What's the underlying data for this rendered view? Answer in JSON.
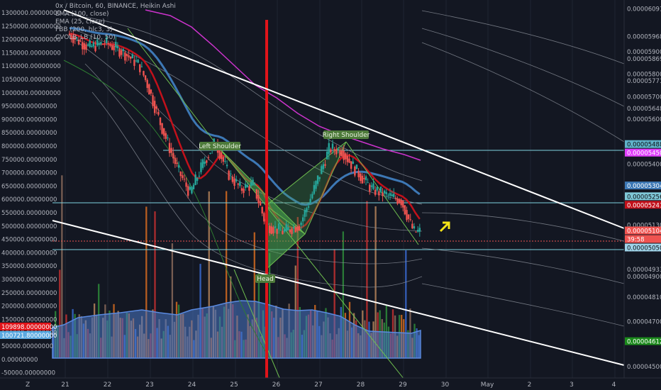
{
  "legend": {
    "title": "0x / Bitcoin, 60, BINANCE, Heikin Ashi",
    "line1": "EMA (100, close)",
    "line2": "EMA (25, close)",
    "line3": "FBB (200, hlc3, 3)",
    "line4": "CVOLB_LB (10, 50)"
  },
  "annotations": {
    "left_shoulder": "Left Shoulder",
    "head": "Head",
    "right_shoulder": "Right Shoulder"
  },
  "corner_label": "Z",
  "volume_axis": {
    "ticks": [
      "1300000.00000000",
      "1250000.00000000",
      "1200000.00000000",
      "1150000.00000000",
      "1100000.00000000",
      "1050000.00000000",
      "1000000.00000000",
      "950000.00000000",
      "900000.00000000",
      "850000.00000000",
      "800000.00000000",
      "750000.00000000",
      "700000.00000000",
      "650000.00000000",
      "600000.00000000",
      "550000.00000000",
      "500000.00000000",
      "450000.00000000",
      "400000.00000000",
      "350000.00000000",
      "300000.00000000",
      "250000.00000000",
      "200000.00000000",
      "150000.00000000",
      "100000.00000000",
      "50000.00000000",
      "0.00000000",
      "-50000.00000000"
    ],
    "badge_red": "109898.00000000",
    "badge_blue": "100721.80000000"
  },
  "price_axis": {
    "plain_ticks": [
      "0.00006091",
      "0.00005968",
      "0.00005900",
      "0.00005869",
      "0.00005800",
      "0.00005771",
      "0.00005700",
      "0.00005648",
      "0.00005600",
      "0.00005400",
      "0.00005253",
      "0.00005130",
      "0.00005031",
      "0.00004933",
      "0.00004900",
      "0.00004810",
      "0.00004700",
      "0.00004500"
    ],
    "badges": [
      {
        "text": "0.00005488",
        "bg": "#5fb2c9",
        "fg": "#0b0e14"
      },
      {
        "text": "0.00005450",
        "bg": "#e040fb",
        "fg": "#ffffff"
      },
      {
        "text": "0.00005304",
        "bg": "#3d78b5",
        "fg": "#ffffff"
      },
      {
        "text": "0.00005256",
        "bg": "#7fc7d6",
        "fg": "#0b0e14"
      },
      {
        "text": "0.00005241",
        "bg": "#c2111b",
        "fg": "#ffffff"
      },
      {
        "text": "0.00005104",
        "bg": "#ef5350",
        "fg": "#ffffff"
      },
      {
        "text": "39:58",
        "bg": "#ef5350",
        "fg": "#ffffff"
      },
      {
        "text": "0.00005050",
        "bg": "#9fd3e8",
        "fg": "#0b0e14"
      },
      {
        "text": "0.00004612",
        "bg": "#1b8a1b",
        "fg": "#ffffff"
      }
    ]
  },
  "time_axis": [
    "21",
    "22",
    "23",
    "24",
    "25",
    "26",
    "27",
    "28",
    "29",
    "30",
    "May",
    "2",
    "3",
    "4"
  ],
  "colors": {
    "background": "#131722",
    "candle_up": "#26a69a",
    "candle_down": "#ef5350",
    "ema100": "#3d78b5",
    "ema25": "#c2111b",
    "bb_outer": "#cc33cc",
    "trend_line": "#ffffff",
    "arrow": "#f5e418",
    "pattern_fill": "#4caf50"
  },
  "chart_data": {
    "type": "candlestick",
    "symbol": "0x / Bitcoin, 60, BINANCE, Heikin Ashi",
    "x_ticks": [
      "21",
      "22",
      "23",
      "24",
      "25",
      "26",
      "27",
      "28",
      "29",
      "30",
      "May",
      "2",
      "3",
      "4"
    ],
    "price_points": [
      {
        "day": 21.1,
        "price": 5.98e-05
      },
      {
        "day": 21.6,
        "price": 5.92e-05
      },
      {
        "day": 22.0,
        "price": 5.94e-05
      },
      {
        "day": 22.4,
        "price": 5.9e-05
      },
      {
        "day": 22.8,
        "price": 5.84e-05
      },
      {
        "day": 23.0,
        "price": 5.75e-05
      },
      {
        "day": 23.3,
        "price": 5.58e-05
      },
      {
        "day": 23.7,
        "price": 5.38e-05
      },
      {
        "day": 24.0,
        "price": 5.27e-05
      },
      {
        "day": 24.3,
        "price": 5.4e-05
      },
      {
        "day": 24.6,
        "price": 5.5e-05
      },
      {
        "day": 24.9,
        "price": 5.36e-05
      },
      {
        "day": 25.2,
        "price": 5.29e-05
      },
      {
        "day": 25.5,
        "price": 5.31e-05
      },
      {
        "day": 25.8,
        "price": 5.13e-05
      },
      {
        "day": 26.2,
        "price": 5.1e-05
      },
      {
        "day": 26.6,
        "price": 5.13e-05
      },
      {
        "day": 26.9,
        "price": 5.27e-05
      },
      {
        "day": 27.3,
        "price": 5.47e-05
      },
      {
        "day": 27.6,
        "price": 5.46e-05
      },
      {
        "day": 27.9,
        "price": 5.38e-05
      },
      {
        "day": 28.3,
        "price": 5.29e-05
      },
      {
        "day": 28.7,
        "price": 5.26e-05
      },
      {
        "day": 29.0,
        "price": 5.24e-05
      },
      {
        "day": 29.3,
        "price": 5.1e-05
      }
    ],
    "ylim": [
      4.45e-05,
      6.13e-05
    ],
    "xlim": [
      20.7,
      35.0
    ]
  }
}
